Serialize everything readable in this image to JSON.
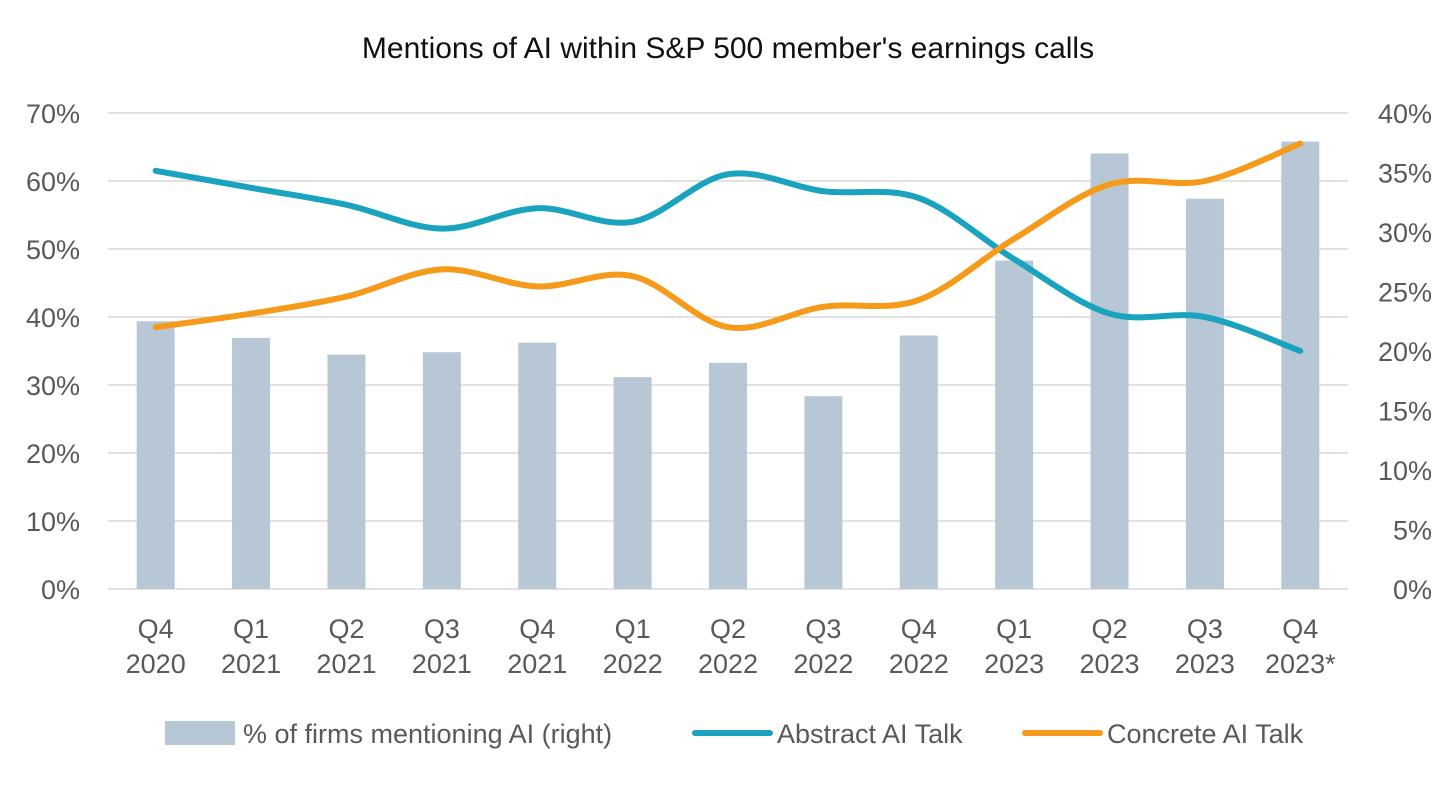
{
  "chart_data": {
    "type": "bar+line",
    "title": "Mentions of AI within S&P 500 member's earnings calls",
    "categories": [
      [
        "Q4",
        "2020"
      ],
      [
        "Q1",
        "2021"
      ],
      [
        "Q2",
        "2021"
      ],
      [
        "Q3",
        "2021"
      ],
      [
        "Q4",
        "2021"
      ],
      [
        "Q1",
        "2022"
      ],
      [
        "Q2",
        "2022"
      ],
      [
        "Q3",
        "2022"
      ],
      [
        "Q4",
        "2022"
      ],
      [
        "Q1",
        "2023"
      ],
      [
        "Q2",
        "2023"
      ],
      [
        "Q3",
        "2023"
      ],
      [
        "Q4",
        "2023*"
      ]
    ],
    "left_axis": {
      "ticks": [
        "0%",
        "10%",
        "20%",
        "30%",
        "40%",
        "50%",
        "60%",
        "70%"
      ],
      "ylim": [
        0,
        70
      ]
    },
    "right_axis": {
      "ticks": [
        "0%",
        "5%",
        "10%",
        "15%",
        "20%",
        "25%",
        "30%",
        "35%",
        "40%"
      ],
      "ylim": [
        0,
        40
      ]
    },
    "grid": true,
    "legend_position": "bottom",
    "series": [
      {
        "name": "% of firms mentioning AI (right)",
        "kind": "bar",
        "axis": "right",
        "color": "#b8c7d6",
        "values": [
          22.5,
          21.1,
          19.7,
          19.9,
          20.7,
          17.8,
          19.0,
          16.2,
          21.3,
          27.6,
          36.6,
          32.8,
          37.6
        ]
      },
      {
        "name": "Abstract AI Talk",
        "kind": "line",
        "axis": "left",
        "color": "#1aa3bf",
        "values": [
          61.5,
          59.0,
          56.5,
          53.0,
          56.0,
          54.0,
          61.0,
          58.5,
          57.5,
          48.5,
          40.5,
          40.0,
          35.0
        ]
      },
      {
        "name": "Concrete AI Talk",
        "kind": "line",
        "axis": "left",
        "color": "#f59a1b",
        "values": [
          38.5,
          40.5,
          43.0,
          47.0,
          44.5,
          46.0,
          38.5,
          41.5,
          42.5,
          51.5,
          59.5,
          60.0,
          65.5
        ]
      }
    ]
  }
}
